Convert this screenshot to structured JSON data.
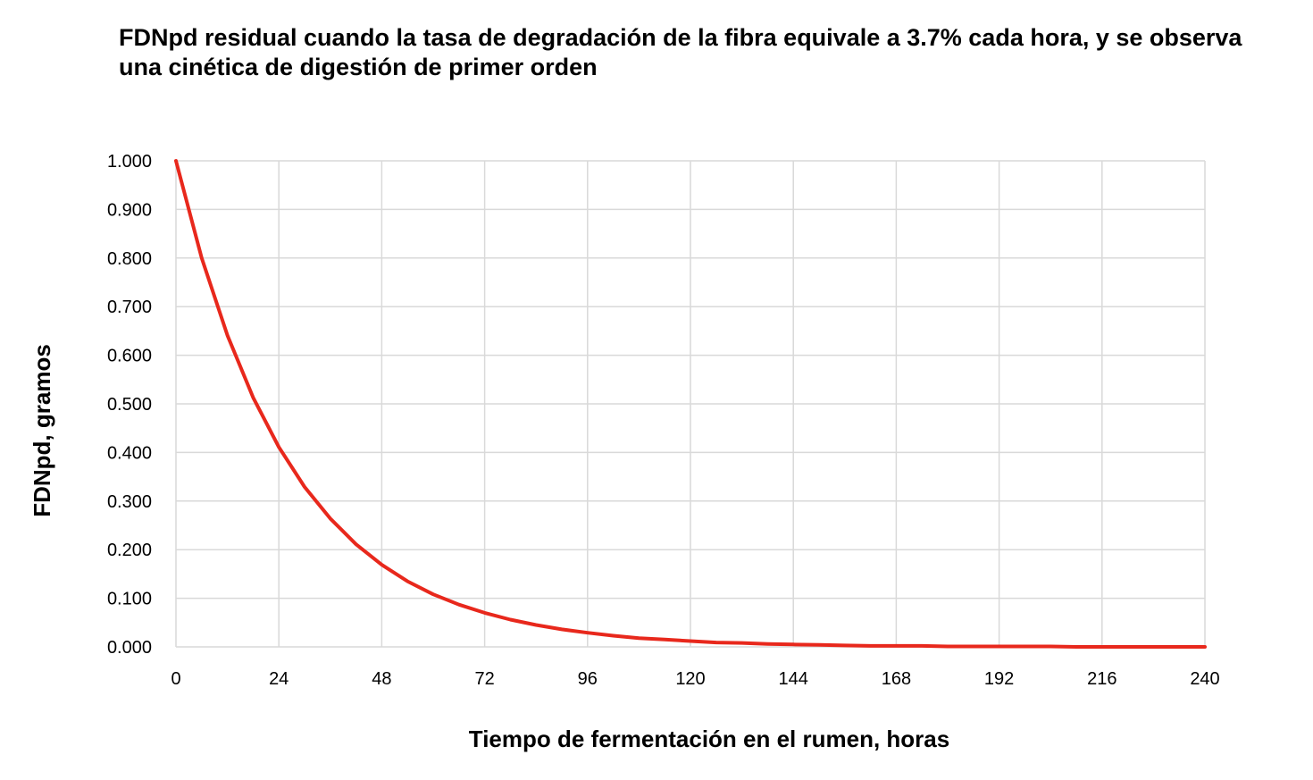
{
  "chart_data": {
    "type": "line",
    "title": "FDNpd residual cuando la tasa de degradación de la fibra equivale a 3.7% cada hora, y se observa una cinética de digestión de primer orden",
    "xlabel": "Tiempo de fermentación en el rumen, horas",
    "ylabel": "FDNpd, gramos",
    "xlim": [
      0,
      240
    ],
    "ylim": [
      0,
      1
    ],
    "x_ticks": [
      "0",
      "24",
      "48",
      "72",
      "96",
      "120",
      "144",
      "168",
      "192",
      "216",
      "240"
    ],
    "y_ticks": [
      "0.000",
      "0.100",
      "0.200",
      "0.300",
      "0.400",
      "0.500",
      "0.600",
      "0.700",
      "0.800",
      "0.900",
      "1.000"
    ],
    "grid": true,
    "series": [
      {
        "color": "#e8281c",
        "x": [
          0,
          6,
          12,
          18,
          24,
          30,
          36,
          42,
          48,
          54,
          60,
          66,
          72,
          78,
          84,
          90,
          96,
          102,
          108,
          114,
          120,
          126,
          132,
          138,
          144,
          150,
          156,
          162,
          168,
          174,
          180,
          186,
          192,
          198,
          204,
          210,
          216,
          222,
          228,
          234,
          240
        ],
        "y": [
          1.0,
          0.8,
          0.641,
          0.513,
          0.411,
          0.329,
          0.264,
          0.211,
          0.169,
          0.135,
          0.108,
          0.087,
          0.07,
          0.056,
          0.045,
          0.036,
          0.029,
          0.023,
          0.018,
          0.015,
          0.012,
          0.009,
          0.008,
          0.006,
          0.005,
          0.004,
          0.003,
          0.002,
          0.002,
          0.002,
          0.001,
          0.001,
          0.001,
          0.001,
          0.001,
          0.0,
          0.0,
          0.0,
          0.0,
          0.0,
          0.0
        ]
      }
    ]
  }
}
